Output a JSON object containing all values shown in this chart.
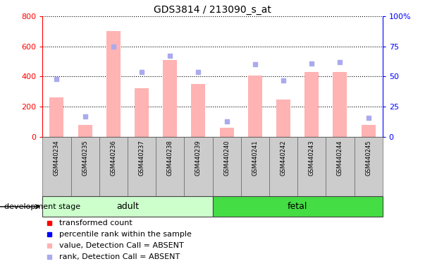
{
  "title": "GDS3814 / 213090_s_at",
  "samples": [
    "GSM440234",
    "GSM440235",
    "GSM440236",
    "GSM440237",
    "GSM440238",
    "GSM440239",
    "GSM440240",
    "GSM440241",
    "GSM440242",
    "GSM440243",
    "GSM440244",
    "GSM440245"
  ],
  "bar_values": [
    260,
    80,
    700,
    325,
    510,
    350,
    60,
    405,
    248,
    430,
    430,
    80
  ],
  "rank_values": [
    48,
    17,
    75,
    54,
    67,
    54,
    13,
    60,
    47,
    61,
    62,
    16
  ],
  "detection_call": [
    "ABSENT",
    "ABSENT",
    "ABSENT",
    "ABSENT",
    "ABSENT",
    "ABSENT",
    "ABSENT",
    "ABSENT",
    "ABSENT",
    "ABSENT",
    "ABSENT",
    "ABSENT"
  ],
  "groups": [
    {
      "label": "adult",
      "start": 0,
      "end": 6,
      "color": "#CCFFCC"
    },
    {
      "label": "fetal",
      "start": 6,
      "end": 12,
      "color": "#44DD44"
    }
  ],
  "bar_color_present": "#FF0000",
  "bar_color_absent": "#FFB3B3",
  "rank_color_present": "#0000FF",
  "rank_color_absent": "#AAAAEE",
  "ylim_left": [
    0,
    800
  ],
  "ylim_right": [
    0,
    100
  ],
  "yticks_left": [
    0,
    200,
    400,
    600,
    800
  ],
  "yticks_right": [
    0,
    25,
    50,
    75,
    100
  ],
  "ytick_labels_right": [
    "0",
    "25",
    "50",
    "75",
    "100%"
  ],
  "grid_color": "black",
  "development_stage_label": "development stage",
  "legend_items": [
    {
      "label": "transformed count",
      "color": "#FF0000",
      "marker": "s"
    },
    {
      "label": "percentile rank within the sample",
      "color": "#0000FF",
      "marker": "s"
    },
    {
      "label": "value, Detection Call = ABSENT",
      "color": "#FFB3B3",
      "marker": "s"
    },
    {
      "label": "rank, Detection Call = ABSENT",
      "color": "#AAAAEE",
      "marker": "s"
    }
  ]
}
